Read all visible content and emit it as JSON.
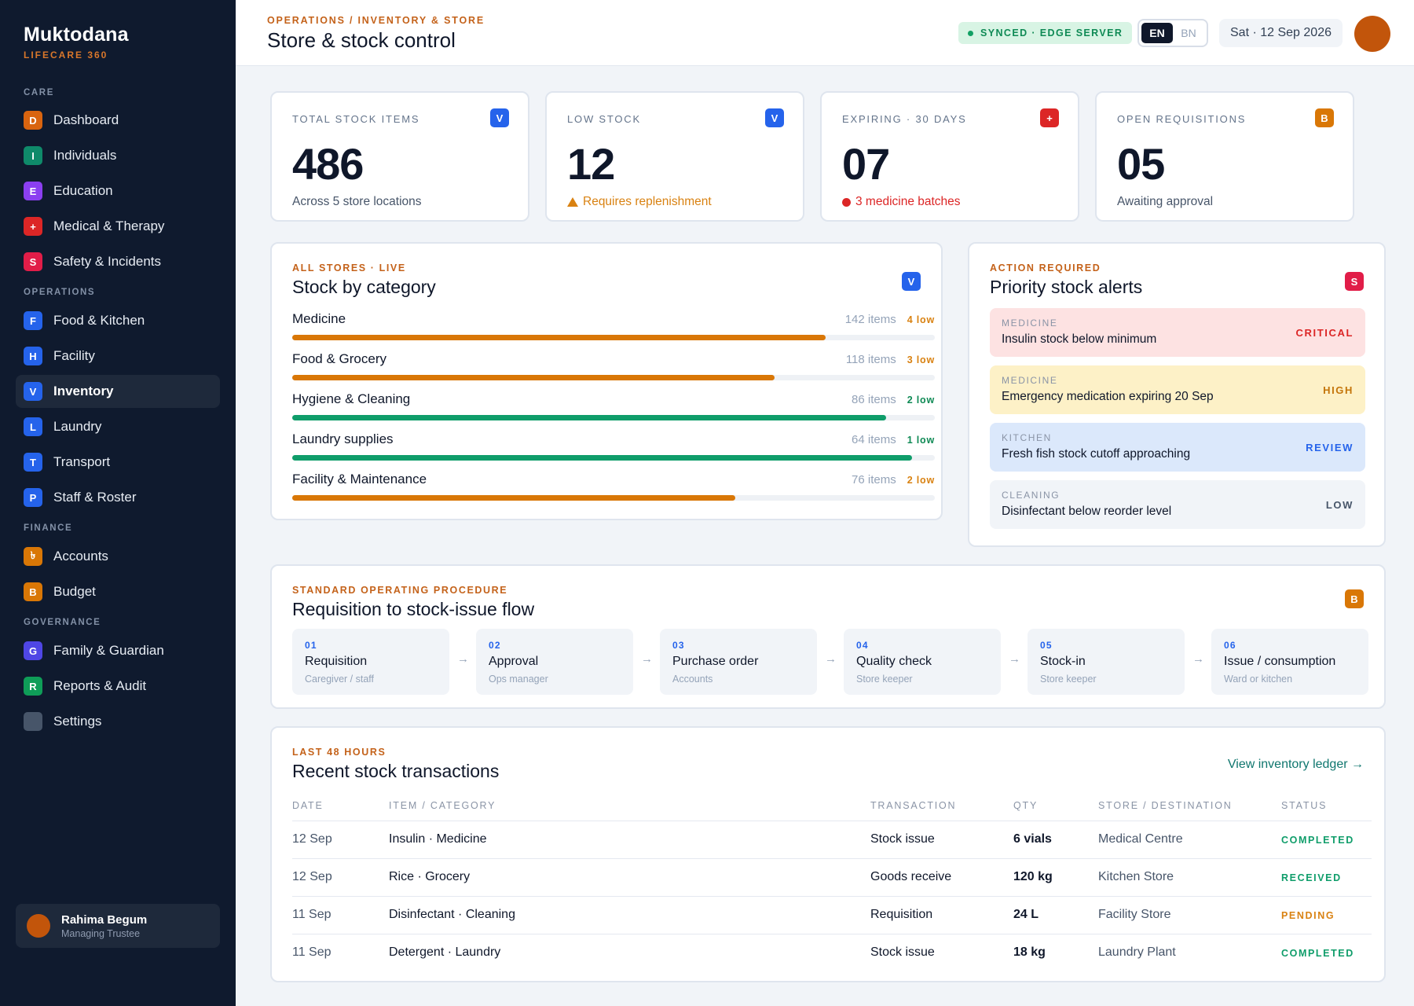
{
  "brand": {
    "name": "Muktodana",
    "subtitle": "LIFECARE 360"
  },
  "sidebar": {
    "sections": [
      {
        "label": "CARE",
        "items": [
          {
            "letter": "D",
            "label": "Dashboard",
            "color": "#d9640f"
          },
          {
            "letter": "I",
            "label": "Individuals",
            "color": "#0f8a6a"
          },
          {
            "letter": "E",
            "label": "Education",
            "color": "#8b3ff0"
          },
          {
            "letter": "+",
            "label": "Medical & Therapy",
            "color": "#dc2626"
          },
          {
            "letter": "S",
            "label": "Safety & Incidents",
            "color": "#e11d48"
          }
        ]
      },
      {
        "label": "OPERATIONS",
        "items": [
          {
            "letter": "F",
            "label": "Food & Kitchen",
            "color": "#2563eb"
          },
          {
            "letter": "H",
            "label": "Facility",
            "color": "#2563eb"
          },
          {
            "letter": "V",
            "label": "Inventory",
            "color": "#2563eb",
            "active": true
          },
          {
            "letter": "L",
            "label": "Laundry",
            "color": "#2563eb"
          },
          {
            "letter": "T",
            "label": "Transport",
            "color": "#2563eb"
          },
          {
            "letter": "P",
            "label": "Staff & Roster",
            "color": "#2563eb"
          }
        ]
      },
      {
        "label": "FINANCE",
        "items": [
          {
            "letter": "৳",
            "label": "Accounts",
            "color": "#d97706"
          },
          {
            "letter": "B",
            "label": "Budget",
            "color": "#d97706"
          }
        ]
      },
      {
        "label": "GOVERNANCE",
        "items": [
          {
            "letter": "G",
            "label": "Family & Guardian",
            "color": "#4f46e5"
          },
          {
            "letter": "R",
            "label": "Reports & Audit",
            "color": "#0f9d58"
          },
          {
            "letter": "",
            "label": "Settings",
            "color": "#475569"
          }
        ]
      }
    ],
    "user": {
      "name": "Rahima Begum",
      "role": "Managing Trustee"
    }
  },
  "header": {
    "breadcrumb": "OPERATIONS / INVENTORY & STORE",
    "title": "Store & stock control",
    "sync": "SYNCED · EDGE SERVER",
    "lang_active": "EN",
    "lang_other": "BN",
    "date": "Sat · 12 Sep 2026"
  },
  "stats": [
    {
      "label": "TOTAL STOCK ITEMS",
      "value": "486",
      "sub": "Across 5 store locations",
      "badge": "V",
      "badge_color": "#2563eb",
      "kind": "normal"
    },
    {
      "label": "LOW STOCK",
      "value": "12",
      "sub": "Requires replenishment",
      "badge": "V",
      "badge_color": "#2563eb",
      "kind": "warn"
    },
    {
      "label": "EXPIRING · 30 DAYS",
      "value": "07",
      "sub": "3 medicine batches",
      "badge": "+",
      "badge_color": "#dc2626",
      "kind": "danger"
    },
    {
      "label": "OPEN REQUISITIONS",
      "value": "05",
      "sub": "Awaiting approval",
      "badge": "B",
      "badge_color": "#d97706",
      "kind": "normal"
    }
  ],
  "categories": {
    "eyebrow": "ALL STORES · LIVE",
    "title": "Stock by category",
    "badge": "V",
    "badge_color": "#2563eb",
    "rows": [
      {
        "name": "Medicine",
        "items": "142 items",
        "low": "4 low",
        "fill": 0.83,
        "color": "#d97706"
      },
      {
        "name": "Food & Grocery",
        "items": "118 items",
        "low": "3 low",
        "fill": 0.75,
        "color": "#d97706"
      },
      {
        "name": "Hygiene & Cleaning",
        "items": "86 items",
        "low": "2 low",
        "fill": 0.924,
        "color": "#0f9d6a"
      },
      {
        "name": "Laundry supplies",
        "items": "64 items",
        "low": "1 low",
        "fill": 0.965,
        "color": "#0f9d6a"
      },
      {
        "name": "Facility & Maintenance",
        "items": "76 items",
        "low": "2 low",
        "fill": 0.69,
        "color": "#d97706"
      }
    ]
  },
  "alerts": {
    "eyebrow": "ACTION REQUIRED",
    "title": "Priority stock alerts",
    "badge": "S",
    "badge_color": "#e11d48",
    "items": [
      {
        "category": "MEDICINE",
        "text": "Insulin stock below minimum",
        "level": "CRITICAL",
        "bg": "#fde2e2",
        "level_color": "#dc2626"
      },
      {
        "category": "MEDICINE",
        "text": "Emergency medication expiring 20 Sep",
        "level": "HIGH",
        "bg": "#fdf1c7",
        "level_color": "#c4750a"
      },
      {
        "category": "KITCHEN",
        "text": "Fresh fish stock cutoff approaching",
        "level": "REVIEW",
        "bg": "#dbe8fb",
        "level_color": "#2563eb"
      },
      {
        "category": "CLEANING",
        "text": "Disinfectant below reorder level",
        "level": "LOW",
        "bg": "#f1f4f8",
        "level_color": "#475569"
      }
    ]
  },
  "flow": {
    "eyebrow": "STANDARD OPERATING PROCEDURE",
    "title": "Requisition to stock-issue flow",
    "badge": "B",
    "badge_color": "#d97706",
    "arrow": "→",
    "steps": [
      {
        "num": "01",
        "title": "Requisition",
        "role": "Caregiver / staff"
      },
      {
        "num": "02",
        "title": "Approval",
        "role": "Ops manager"
      },
      {
        "num": "03",
        "title": "Purchase order",
        "role": "Accounts"
      },
      {
        "num": "04",
        "title": "Quality check",
        "role": "Store keeper"
      },
      {
        "num": "05",
        "title": "Stock-in",
        "role": "Store keeper"
      },
      {
        "num": "06",
        "title": "Issue / consumption",
        "role": "Ward or kitchen"
      }
    ]
  },
  "transactions": {
    "eyebrow": "LAST 48 HOURS",
    "title": "Recent stock transactions",
    "link": "View inventory ledger →",
    "columns": [
      "DATE",
      "ITEM / CATEGORY",
      "TRANSACTION",
      "QTY",
      "STORE / DESTINATION",
      "STATUS"
    ],
    "rows": [
      {
        "date": "12 Sep",
        "item": "Insulin · Medicine",
        "type": "Stock issue",
        "qty": "6 vials",
        "store": "Medical Centre",
        "status": "COMPLETED",
        "status_color": "#0f9d6a"
      },
      {
        "date": "12 Sep",
        "item": "Rice · Grocery",
        "type": "Goods receive",
        "qty": "120 kg",
        "store": "Kitchen Store",
        "status": "RECEIVED",
        "status_color": "#0f9d6a"
      },
      {
        "date": "11 Sep",
        "item": "Disinfectant · Cleaning",
        "type": "Requisition",
        "qty": "24 L",
        "store": "Facility Store",
        "status": "PENDING",
        "status_color": "#d98212"
      },
      {
        "date": "11 Sep",
        "item": "Detergent · Laundry",
        "type": "Stock issue",
        "qty": "18 kg",
        "store": "Laundry Plant",
        "status": "COMPLETED",
        "status_color": "#0f9d6a"
      }
    ]
  }
}
